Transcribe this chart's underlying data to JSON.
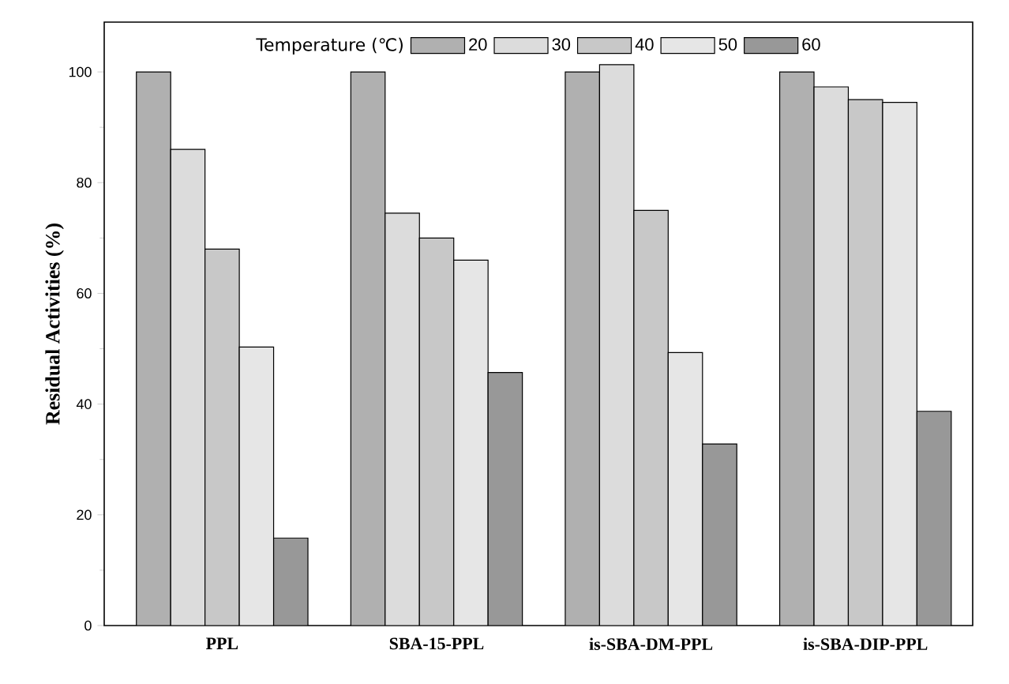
{
  "chart_data": {
    "type": "bar",
    "ylabel": "Residual Activities (%)",
    "legend_title": "Temperature (℃)",
    "legend": "top",
    "categories": [
      "PPL",
      "SBA-15-PPL",
      "is-SBA-DM-PPL",
      "is-SBA-DIP-PPL"
    ],
    "series": [
      {
        "name": "20",
        "color": "#b0b0b0",
        "values": [
          100,
          100,
          100,
          100
        ]
      },
      {
        "name": "30",
        "color": "#dcdcdc",
        "values": [
          86,
          74.5,
          101.3,
          97.3
        ]
      },
      {
        "name": "40",
        "color": "#c8c8c8",
        "values": [
          68,
          70,
          75,
          95
        ]
      },
      {
        "name": "50",
        "color": "#e6e6e6",
        "values": [
          50.3,
          66,
          49.3,
          94.5
        ]
      },
      {
        "name": "60",
        "color": "#989898",
        "values": [
          15.8,
          45.7,
          32.8,
          38.7
        ]
      }
    ],
    "ylim": [
      0,
      109
    ],
    "yticks": [
      0,
      20,
      40,
      60,
      80,
      100
    ]
  }
}
